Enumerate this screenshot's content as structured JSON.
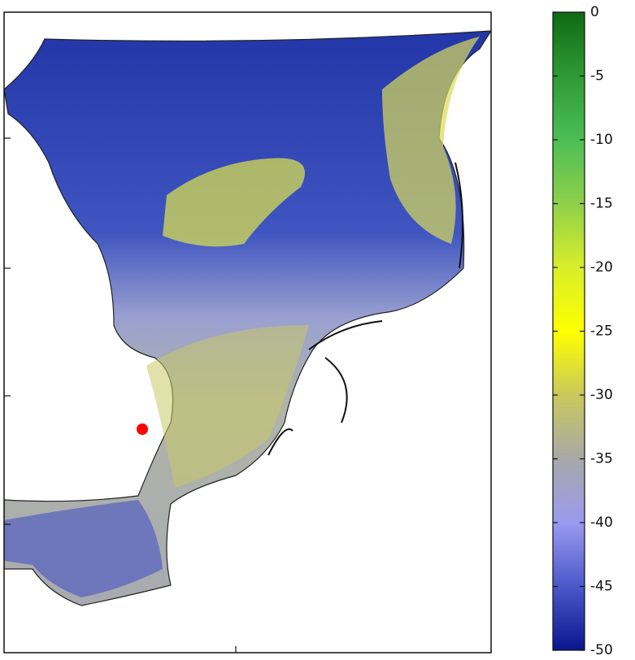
{
  "colorbar": {
    "lim": [
      -50,
      0
    ],
    "ticks": [
      0,
      -5,
      -10,
      -15,
      -20,
      -25,
      -30,
      -35,
      -40,
      -45,
      -50
    ],
    "colors": [
      "#0f6a12",
      "#2f9a35",
      "#4cbe55",
      "#8fd04a",
      "#d8ee2a",
      "#ffff00",
      "#c9c95c",
      "#a8a8a8",
      "#9a9af0",
      "#4a58c8",
      "#0a168e"
    ]
  },
  "marker_color": "#ff0000"
}
